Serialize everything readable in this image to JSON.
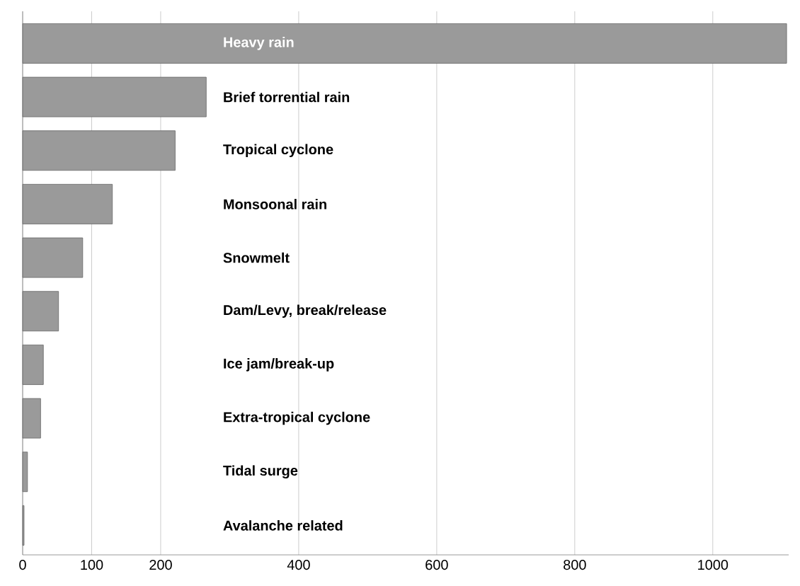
{
  "chart_data": {
    "type": "bar",
    "orientation": "horizontal",
    "categories": [
      "Heavy rain",
      "Brief torrential rain",
      "Tropical cyclone",
      "Monsoonal rain",
      "Snowmelt",
      "Dam/Levy, break/release",
      "Ice jam/break-up",
      "Extra-tropical cyclone",
      "Tidal surge",
      "Avalanche related"
    ],
    "values": [
      1107,
      266,
      221,
      130,
      87,
      52,
      30,
      26,
      7,
      2
    ],
    "color": "#9a9a9a",
    "xlim": [
      0,
      1110
    ],
    "xticks": [
      0,
      100,
      200,
      400,
      600,
      800,
      1000
    ],
    "grid": "x"
  }
}
